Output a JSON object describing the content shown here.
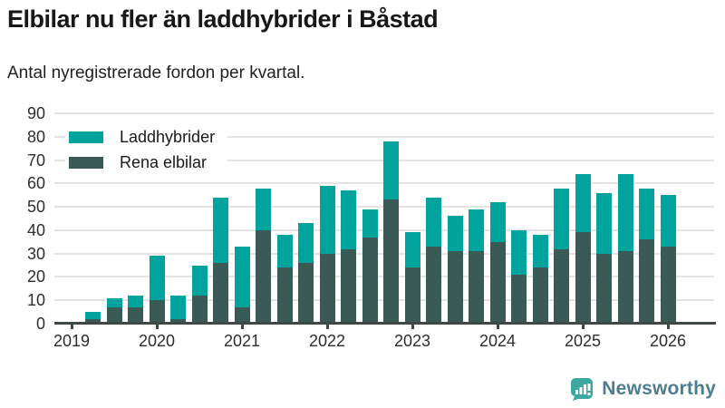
{
  "title": "Elbilar nu fler än laddhybrider i Båstad",
  "subtitle": "Antal nyregistrerade fordon per kvartal.",
  "legend": [
    {
      "label": "Laddhybrider",
      "color": "#00a49c"
    },
    {
      "label": "Rena elbilar",
      "color": "#3a5a56"
    }
  ],
  "branding": {
    "name": "Newsworthy",
    "icon_color": "#3ea79f",
    "text_color": "#4e7d92"
  },
  "chart_data": {
    "type": "bar",
    "stacked": true,
    "title": "Elbilar nu fler än laddhybrider i Båstad",
    "subtitle": "Antal nyregistrerade fordon per kvartal.",
    "xlabel": "",
    "ylabel": "",
    "ylim": [
      0,
      90
    ],
    "yticks": [
      0,
      10,
      20,
      30,
      40,
      50,
      60,
      70,
      80,
      90
    ],
    "grid": true,
    "legend_position": "top-left",
    "x_tick_labels": [
      "2019",
      "2020",
      "2021",
      "2022",
      "2023",
      "2024",
      "2025",
      "2026"
    ],
    "quarters_per_year": 4,
    "start_slot": 1,
    "categories": [
      "2019 K2",
      "2019 K3",
      "2019 K4",
      "2020 K1",
      "2020 K2",
      "2020 K3",
      "2020 K4",
      "2021 K1",
      "2021 K2",
      "2021 K3",
      "2021 K4",
      "2022 K1",
      "2022 K2",
      "2022 K3",
      "2022 K4",
      "2023 K1",
      "2023 K2",
      "2023 K3",
      "2023 K4",
      "2024 K1",
      "2024 K2",
      "2024 K3",
      "2024 K4",
      "2025 K1",
      "2025 K2",
      "2025 K3",
      "2025 K4",
      "2026 K1"
    ],
    "series": [
      {
        "name": "Laddhybrider",
        "color": "#00a49c",
        "values": [
          3,
          4,
          5,
          19,
          10,
          13,
          28,
          26,
          18,
          14,
          17,
          29,
          25,
          12,
          25,
          15,
          21,
          15,
          18,
          17,
          19,
          14,
          26,
          25,
          26,
          33,
          22,
          22
        ]
      },
      {
        "name": "Rena elbilar",
        "color": "#3a5a56",
        "values": [
          2,
          7,
          7,
          10,
          2,
          12,
          26,
          7,
          40,
          24,
          26,
          30,
          32,
          37,
          53,
          24,
          33,
          31,
          31,
          35,
          21,
          24,
          32,
          39,
          30,
          31,
          36,
          33
        ]
      }
    ]
  }
}
